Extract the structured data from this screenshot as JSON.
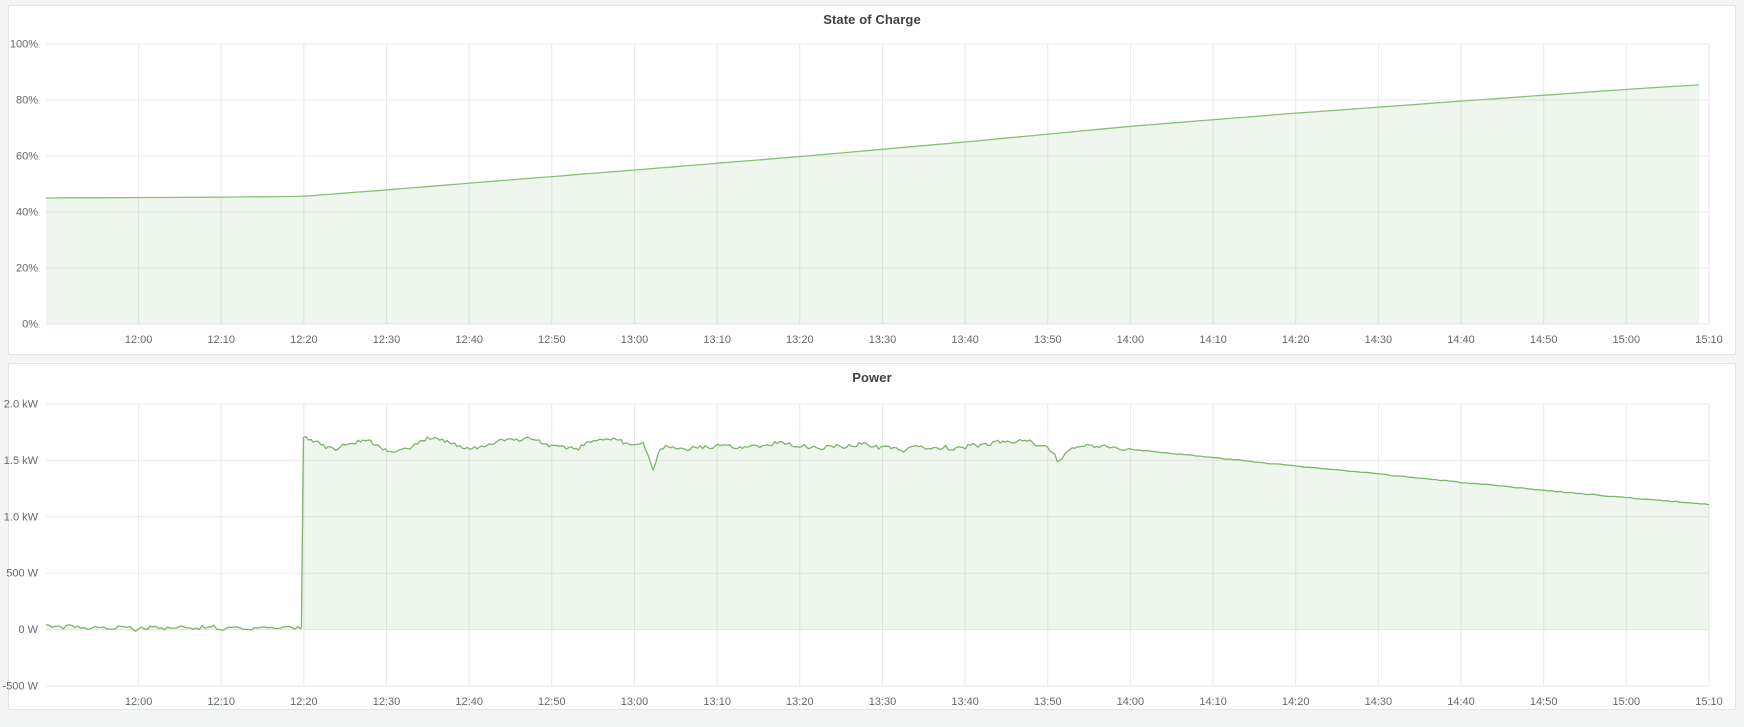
{
  "dashboard": {
    "background_color": "#f4f5f5",
    "panel_border_color": "#e3e5e8",
    "accent_green": "#83ba72",
    "fill_green": "rgba(131,186,114,0.13)",
    "gridline_color": "#e9eaec"
  },
  "chart_data": [
    {
      "type": "area",
      "title": "State of Charge",
      "unit": "percent",
      "legend_position": "none",
      "grid": true,
      "t_range": [
        -11.2,
        190
      ],
      "y_range": [
        0,
        100
      ],
      "line_color": "#8cbf7b",
      "fill_color": "rgba(131,186,114,0.13)",
      "y_ticks": [
        [
          0,
          "0%"
        ],
        [
          20,
          "20%"
        ],
        [
          40,
          "40%"
        ],
        [
          60,
          "60%"
        ],
        [
          80,
          "80%"
        ],
        [
          100,
          "100%"
        ]
      ],
      "x_ticks": [
        [
          0,
          "12:00"
        ],
        [
          10,
          "12:10"
        ],
        [
          20,
          "12:20"
        ],
        [
          30,
          "12:30"
        ],
        [
          40,
          "12:40"
        ],
        [
          50,
          "12:50"
        ],
        [
          60,
          "13:00"
        ],
        [
          70,
          "13:10"
        ],
        [
          80,
          "13:20"
        ],
        [
          90,
          "13:30"
        ],
        [
          100,
          "13:40"
        ],
        [
          110,
          "13:50"
        ],
        [
          120,
          "14:00"
        ],
        [
          130,
          "14:10"
        ],
        [
          140,
          "14:20"
        ],
        [
          150,
          "14:30"
        ],
        [
          160,
          "14:40"
        ],
        [
          170,
          "14:50"
        ],
        [
          180,
          "15:00"
        ],
        [
          190,
          "15:10"
        ]
      ],
      "series": [
        {
          "name": "State of Charge",
          "segments": [
            {
              "kind": "smooth",
              "keypoints": [
                [
                  -11.2,
                  45.0
                ],
                [
                  0,
                  45.15
                ],
                [
                  10,
                  45.3
                ],
                [
                  20,
                  45.6
                ],
                [
                  30,
                  47.9
                ],
                [
                  40,
                  50.3
                ],
                [
                  60,
                  55.0
                ],
                [
                  80,
                  59.8
                ],
                [
                  100,
                  65.0
                ],
                [
                  120,
                  70.6
                ],
                [
                  140,
                  75.3
                ],
                [
                  160,
                  79.6
                ],
                [
                  180,
                  83.8
                ],
                [
                  190,
                  85.6
                ]
              ],
              "noise": 0,
              "seed": 1,
              "step": 2
            }
          ]
        }
      ]
    },
    {
      "type": "area",
      "title": "Power",
      "unit": "watt",
      "legend_position": "none",
      "grid": true,
      "t_range": [
        -11.2,
        190
      ],
      "y_range": [
        -0.5,
        2.0
      ],
      "line_color": "#7db56c",
      "fill_color": "rgba(131,186,114,0.13)",
      "y_ticks": [
        [
          -0.5,
          "-500 W"
        ],
        [
          0,
          "0 W"
        ],
        [
          0.5,
          "500 W"
        ],
        [
          1.0,
          "1.0 kW"
        ],
        [
          1.5,
          "1.5 kW"
        ],
        [
          2.0,
          "2.0 kW"
        ]
      ],
      "x_ticks": [
        [
          0,
          "12:00"
        ],
        [
          10,
          "12:10"
        ],
        [
          20,
          "12:20"
        ],
        [
          30,
          "12:30"
        ],
        [
          40,
          "12:40"
        ],
        [
          50,
          "12:50"
        ],
        [
          60,
          "13:00"
        ],
        [
          70,
          "13:10"
        ],
        [
          80,
          "13:20"
        ],
        [
          90,
          "13:30"
        ],
        [
          100,
          "13:40"
        ],
        [
          110,
          "13:50"
        ],
        [
          120,
          "14:00"
        ],
        [
          130,
          "14:10"
        ],
        [
          140,
          "14:20"
        ],
        [
          150,
          "14:30"
        ],
        [
          160,
          "14:40"
        ],
        [
          170,
          "14:50"
        ],
        [
          180,
          "15:00"
        ],
        [
          190,
          "15:10"
        ]
      ],
      "series": [
        {
          "name": "Power",
          "segments": [
            {
              "kind": "noisy",
              "t0": -11.2,
              "t1": 19.7,
              "keypoints": [
                [
                  -11.2,
                  0.035
                ],
                [
                  -7,
                  0.02
                ],
                [
                  0,
                  0.012
                ],
                [
                  6,
                  0.02
                ],
                [
                  12,
                  0.012
                ],
                [
                  19.7,
                  0.018
                ]
              ],
              "amp": 0.022,
              "jitter": 0.014,
              "seed": 11,
              "step": 0.35
            },
            {
              "kind": "smooth",
              "keypoints": [
                [
                  19.7,
                  0.02
                ],
                [
                  19.95,
                  1.79
                ]
              ],
              "noise": 0,
              "seed": 2,
              "step": 0.2
            },
            {
              "kind": "noisy",
              "t0": 19.95,
              "t1": 120,
              "keypoints": [
                [
                  19.95,
                  1.71
                ],
                [
                  22,
                  1.64
                ],
                [
                  24,
                  1.6
                ],
                [
                  27,
                  1.69
                ],
                [
                  29,
                  1.63
                ],
                [
                  31,
                  1.56
                ],
                [
                  34,
                  1.66
                ],
                [
                  36,
                  1.71
                ],
                [
                  38,
                  1.64
                ],
                [
                  41,
                  1.6
                ],
                [
                  44,
                  1.68
                ],
                [
                  47,
                  1.7
                ],
                [
                  50,
                  1.63
                ],
                [
                  53,
                  1.61
                ],
                [
                  56,
                  1.7
                ],
                [
                  59,
                  1.66
                ],
                [
                  61,
                  1.64
                ],
                [
                  62.3,
                  1.42
                ],
                [
                  63,
                  1.62
                ],
                [
                  66,
                  1.6
                ],
                [
                  70,
                  1.63
                ],
                [
                  74,
                  1.62
                ],
                [
                  78,
                  1.66
                ],
                [
                  81,
                  1.61
                ],
                [
                  84,
                  1.62
                ],
                [
                  88,
                  1.64
                ],
                [
                  92,
                  1.6
                ],
                [
                  95,
                  1.62
                ],
                [
                  98,
                  1.6
                ],
                [
                  101,
                  1.63
                ],
                [
                  104,
                  1.66
                ],
                [
                  107,
                  1.68
                ],
                [
                  110,
                  1.62
                ],
                [
                  111.3,
                  1.48
                ],
                [
                  112.5,
                  1.6
                ],
                [
                  115,
                  1.64
                ],
                [
                  117,
                  1.62
                ],
                [
                  120,
                  1.6
                ]
              ],
              "amp": 0.018,
              "jitter": 0.014,
              "seed": 5,
              "step": 0.3
            },
            {
              "kind": "smooth",
              "keypoints": [
                [
                  120,
                  1.6
                ],
                [
                  130,
                  1.525
                ],
                [
                  140,
                  1.45
                ],
                [
                  150,
                  1.38
                ],
                [
                  160,
                  1.305
                ],
                [
                  170,
                  1.235
                ],
                [
                  180,
                  1.17
                ],
                [
                  190,
                  1.11
                ]
              ],
              "noise": 0.004,
              "seed": 3,
              "step": 0.5
            }
          ]
        }
      ]
    }
  ]
}
